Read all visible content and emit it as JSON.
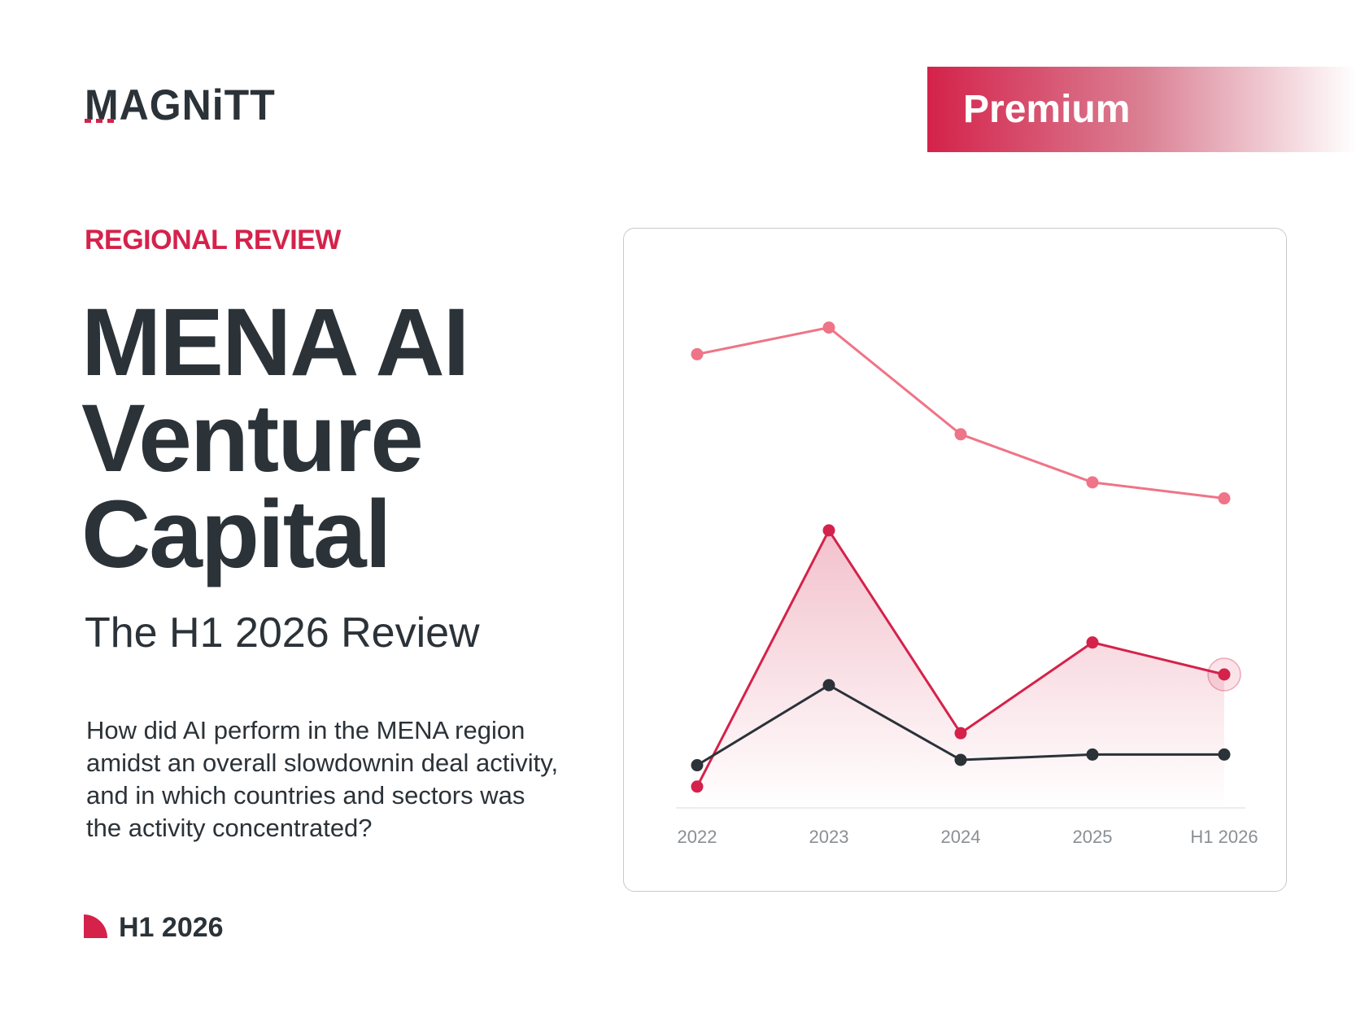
{
  "brand": {
    "logo_text": "MAGNiTT"
  },
  "badge": {
    "label": "Premium"
  },
  "header": {
    "kicker": "REGIONAL REVIEW",
    "title_lines": [
      "MENA AI",
      "Venture",
      "Capital"
    ],
    "subtitle": "The H1 2026 Review"
  },
  "description": {
    "lines": [
      "How did AI perform in the MENA region",
      "amidst an overall slowdownin deal activity,",
      "and in which countries and sectors was",
      "the activity concentrated?"
    ]
  },
  "footer": {
    "label": "H1 2026"
  },
  "colors": {
    "accent": "#d4224a",
    "light_accent": "#ef7487",
    "dark": "#2b3238"
  },
  "chart_data": {
    "type": "line",
    "categories": [
      "2022",
      "2023",
      "2024",
      "2025",
      "H1 2026"
    ],
    "series": [
      {
        "values": [
          85,
          90,
          70,
          61,
          58
        ],
        "color": "#ef7487",
        "fill": false
      },
      {
        "values": [
          4,
          52,
          14,
          31,
          25
        ],
        "color": "#d4224a",
        "fill": true
      },
      {
        "values": [
          8,
          23,
          9,
          10,
          10
        ],
        "color": "#2b3238",
        "fill": false
      }
    ],
    "ylim": [
      0,
      100
    ],
    "grid": false,
    "yaxis_visible": false,
    "highlight_last_point_of_series": 1
  }
}
